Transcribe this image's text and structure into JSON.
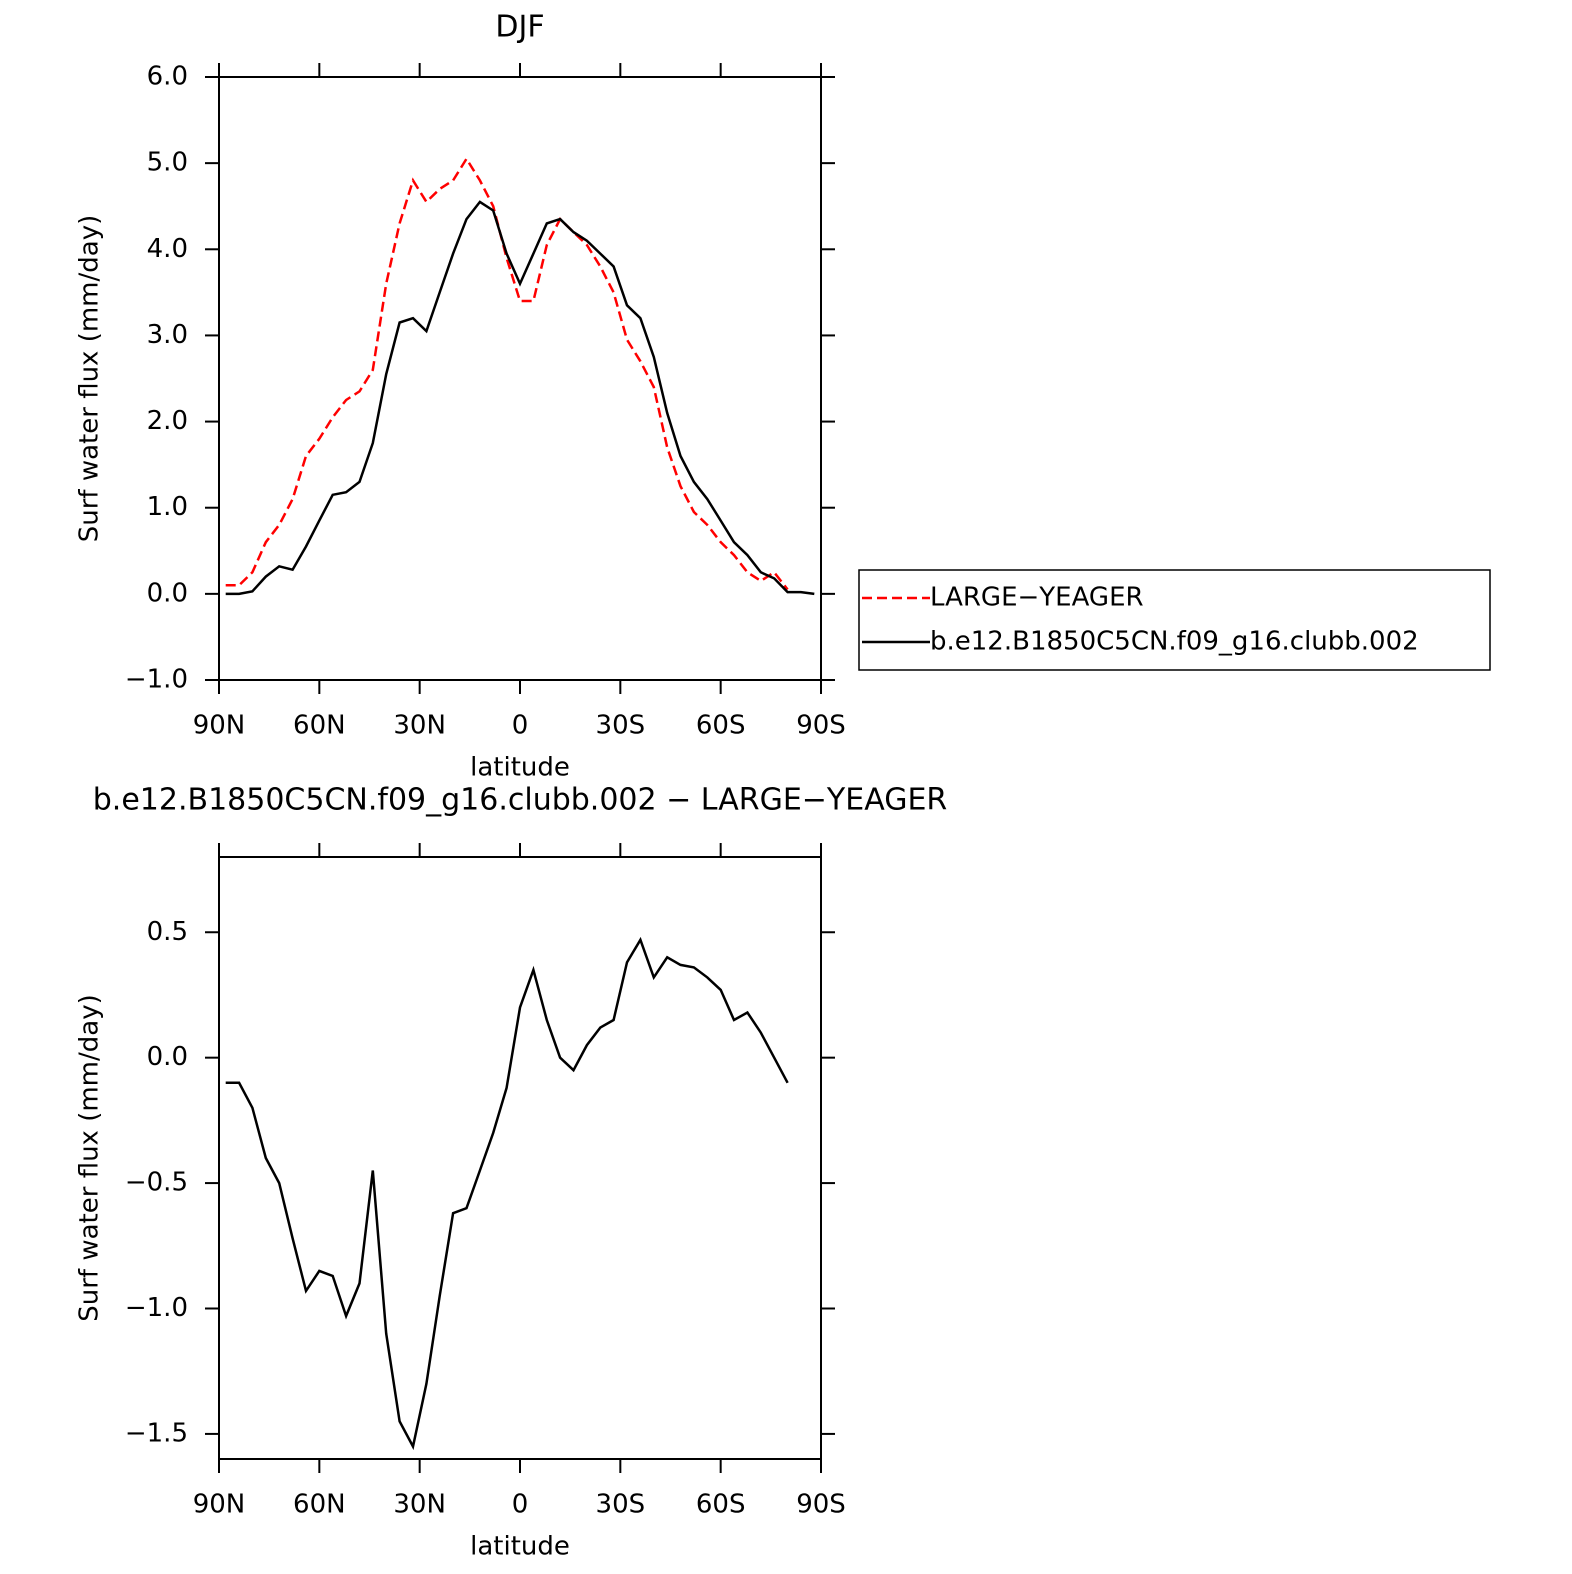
{
  "chart_data": [
    {
      "type": "line",
      "title": "DJF",
      "xlabel": "latitude",
      "ylabel": "Surf water flux (mm/day)",
      "x": [
        88,
        84,
        80,
        76,
        72,
        68,
        64,
        60,
        56,
        52,
        48,
        44,
        40,
        36,
        32,
        28,
        24,
        20,
        16,
        12,
        8,
        4,
        0,
        -4,
        -8,
        -12,
        -16,
        -20,
        -24,
        -28,
        -32,
        -36,
        -40,
        -44,
        -48,
        -52,
        -56,
        -60,
        -64,
        -68,
        -72,
        -76,
        -80,
        -84,
        -88
      ],
      "xlim": [
        90,
        -90
      ],
      "xticks": [
        {
          "value": 90,
          "label": "90N"
        },
        {
          "value": 60,
          "label": "60N"
        },
        {
          "value": 30,
          "label": "30N"
        },
        0,
        {
          "value": -30,
          "label": "30S"
        },
        {
          "value": -60,
          "label": "60S"
        },
        {
          "value": -90,
          "label": "90S"
        }
      ],
      "ylim": [
        -1.0,
        6.0
      ],
      "yticks": [
        {
          "value": -1,
          "label": "−1.0"
        },
        {
          "value": 0,
          "label": "0.0"
        },
        {
          "value": 1,
          "label": "1.0"
        },
        {
          "value": 2,
          "label": "2.0"
        },
        {
          "value": 3,
          "label": "3.0"
        },
        {
          "value": 4,
          "label": "4.0"
        },
        {
          "value": 5,
          "label": "5.0"
        },
        {
          "value": 6,
          "label": "6.0"
        }
      ],
      "legend": "right",
      "series": [
        {
          "name": "LARGE−YEAGER",
          "color": "#ff0000",
          "dashed": true,
          "values": [
            0.1,
            0.1,
            0.25,
            0.6,
            0.8,
            1.1,
            1.6,
            1.8,
            2.05,
            2.25,
            2.35,
            2.6,
            3.6,
            4.3,
            4.8,
            4.55,
            4.7,
            4.8,
            5.05,
            4.8,
            4.5,
            3.9,
            3.4,
            3.4,
            4.05,
            4.35,
            4.2,
            4.05,
            3.8,
            3.5,
            2.95,
            2.7,
            2.4,
            1.7,
            1.25,
            0.95,
            0.8,
            0.6,
            0.45,
            0.25,
            0.15,
            0.25,
            0.05,
            null,
            null
          ]
        },
        {
          "name": "b.e12.B1850C5CN.f09_g16.clubb.002",
          "color": "#000000",
          "dashed": false,
          "values": [
            0,
            0,
            0.03,
            0.2,
            0.32,
            0.28,
            0.55,
            0.85,
            1.15,
            1.18,
            1.3,
            1.75,
            2.55,
            3.15,
            3.2,
            3.05,
            3.5,
            3.95,
            4.35,
            4.55,
            4.45,
            3.95,
            3.6,
            3.95,
            4.3,
            4.35,
            4.2,
            4.1,
            3.95,
            3.8,
            3.35,
            3.2,
            2.75,
            2.1,
            1.6,
            1.3,
            1.1,
            0.85,
            0.6,
            0.45,
            0.25,
            0.18,
            0.02,
            0.02,
            0
          ]
        }
      ]
    },
    {
      "type": "line",
      "title": "b.e12.B1850C5CN.f09_g16.clubb.002 − LARGE−YEAGER",
      "xlabel": "latitude",
      "ylabel": "Surf water flux (mm/day)",
      "x": [
        88,
        84,
        80,
        76,
        72,
        68,
        64,
        60,
        56,
        52,
        48,
        44,
        40,
        36,
        32,
        28,
        24,
        20,
        16,
        12,
        8,
        4,
        0,
        -4,
        -8,
        -12,
        -16,
        -20,
        -24,
        -28,
        -32,
        -36,
        -40,
        -44,
        -48,
        -52,
        -56,
        -60,
        -64,
        -68,
        -72,
        -76,
        -80,
        -84,
        -88
      ],
      "xlim": [
        90,
        -90
      ],
      "xticks": [
        {
          "value": 90,
          "label": "90N"
        },
        {
          "value": 60,
          "label": "60N"
        },
        {
          "value": 30,
          "label": "30N"
        },
        0,
        {
          "value": -30,
          "label": "30S"
        },
        {
          "value": -60,
          "label": "60S"
        },
        {
          "value": -90,
          "label": "90S"
        }
      ],
      "ylim": [
        -1.6,
        0.8
      ],
      "yticks": [
        {
          "value": -1.5,
          "label": "−1.5"
        },
        {
          "value": -1,
          "label": "−1.0"
        },
        {
          "value": -0.5,
          "label": "−0.5"
        },
        {
          "value": 0,
          "label": "0.0"
        },
        0.5
      ],
      "series": [
        {
          "name": null,
          "color": "#000000",
          "dashed": false,
          "values": [
            -0.1,
            -0.1,
            -0.2,
            -0.4,
            -0.5,
            -0.72,
            -0.93,
            -0.85,
            -0.87,
            -1.03,
            -0.9,
            -0.45,
            -1.1,
            -1.45,
            -1.55,
            -1.3,
            -0.95,
            -0.62,
            -0.6,
            -0.45,
            -0.3,
            -0.12,
            0.2,
            0.35,
            0.15,
            0,
            -0.05,
            0.05,
            0.12,
            0.15,
            0.38,
            0.47,
            0.32,
            0.4,
            0.37,
            0.36,
            0.32,
            0.27,
            0.15,
            0.18,
            0.1,
            0,
            -0.1,
            null,
            null
          ]
        }
      ]
    }
  ]
}
